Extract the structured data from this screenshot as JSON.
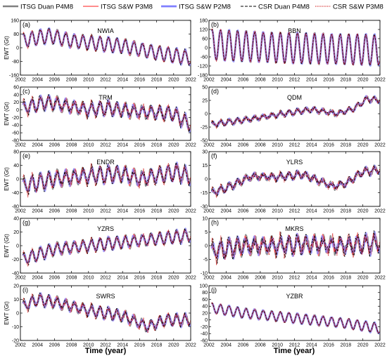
{
  "legend": {
    "items": [
      {
        "label": "ITSG Duan P4M8",
        "color": "#808080",
        "dash": "",
        "width": 2.4
      },
      {
        "label": "ITSG S&W P3M8",
        "color": "#ff6666",
        "dash": "",
        "width": 1.6
      },
      {
        "label": "ITSG  S&W P2M8",
        "color": "#7f7fff",
        "dash": "",
        "width": 2.8
      },
      {
        "label": "CSR Duan P4M8",
        "color": "#000000",
        "dash": "4,2",
        "width": 1.1
      },
      {
        "label": "CSR S&W P3M8",
        "color": "#cc0000",
        "dash": "1.2,1.2",
        "width": 1.1
      }
    ]
  },
  "x_title": "Time (year)",
  "chart_data": [
    {
      "type": "line",
      "panel": "(a)",
      "title": "NWIA",
      "ylabel": "EWT (Gt)",
      "ylim": [
        -160,
        160
      ],
      "yticks": [
        -160,
        -80,
        0,
        80,
        160
      ],
      "xlim": [
        2002,
        2022
      ],
      "xticks": [
        2002,
        2004,
        2006,
        2008,
        2010,
        2012,
        2014,
        2016,
        2018,
        2020,
        2022
      ],
      "trend": [
        [
          2002.3,
          40
        ],
        [
          2004.0,
          60
        ],
        [
          2005.5,
          70
        ],
        [
          2008.0,
          40
        ],
        [
          2012.0,
          20
        ],
        [
          2014.0,
          10
        ],
        [
          2016.0,
          -10
        ],
        [
          2018.0,
          -30
        ],
        [
          2020.0,
          -45
        ],
        [
          2022.0,
          -60
        ]
      ],
      "amplitude": 40,
      "noise": 8,
      "series": [
        {
          "name": "ITSG Duan P4M8"
        },
        {
          "name": "ITSG S&W P3M8"
        },
        {
          "name": "ITSG  S&W P2M8"
        },
        {
          "name": "CSR Duan P4M8"
        },
        {
          "name": "CSR S&W P3M8"
        }
      ]
    },
    {
      "type": "line",
      "panel": "(b)",
      "title": "BBN",
      "ylabel": "",
      "ylim": [
        -180,
        180
      ],
      "yticks": [
        -180,
        -120,
        -60,
        0,
        60,
        120,
        180
      ],
      "xlim": [
        2002,
        2022
      ],
      "xticks": [
        2002,
        2004,
        2006,
        2008,
        2010,
        2012,
        2014,
        2016,
        2018,
        2020,
        2022
      ],
      "trend": [
        [
          2002.3,
          20
        ],
        [
          2006.0,
          10
        ],
        [
          2010.0,
          0
        ],
        [
          2014.0,
          -5
        ],
        [
          2018.0,
          -10
        ],
        [
          2022.0,
          -15
        ]
      ],
      "amplitude": 100,
      "noise": 6,
      "series": [
        {
          "name": "ITSG Duan P4M8"
        },
        {
          "name": "ITSG S&W P3M8"
        },
        {
          "name": "ITSG  S&W P2M8"
        },
        {
          "name": "CSR Duan P4M8"
        },
        {
          "name": "CSR S&W P3M8"
        }
      ]
    },
    {
      "type": "line",
      "panel": "(c)",
      "title": "TRM",
      "ylabel": "EWT (Gt)",
      "ylim": [
        -80,
        60
      ],
      "yticks": [
        -80,
        -60,
        -40,
        -20,
        0,
        20,
        40,
        60
      ],
      "xlim": [
        2002,
        2022
      ],
      "xticks": [
        2002,
        2004,
        2006,
        2008,
        2010,
        2012,
        2014,
        2016,
        2018,
        2020,
        2022
      ],
      "trend": [
        [
          2002.3,
          5
        ],
        [
          2005.0,
          20
        ],
        [
          2006.5,
          15
        ],
        [
          2010.0,
          0
        ],
        [
          2012.0,
          5
        ],
        [
          2016.0,
          -5
        ],
        [
          2020.0,
          -10
        ],
        [
          2022.0,
          -40
        ]
      ],
      "amplitude": 15,
      "noise": 8,
      "series": [
        {
          "name": "ITSG Duan P4M8"
        },
        {
          "name": "ITSG S&W P3M8"
        },
        {
          "name": "ITSG  S&W P2M8"
        },
        {
          "name": "CSR Duan P4M8"
        },
        {
          "name": "CSR S&W P3M8"
        }
      ]
    },
    {
      "type": "line",
      "panel": "(d)",
      "title": "QDM",
      "ylabel": "",
      "ylim": [
        -50,
        50
      ],
      "yticks": [
        -50,
        -25,
        0,
        25,
        50
      ],
      "xlim": [
        2002,
        2022
      ],
      "xticks": [
        2002,
        2004,
        2006,
        2008,
        2010,
        2012,
        2014,
        2016,
        2018,
        2020,
        2022
      ],
      "trend": [
        [
          2002.3,
          -20
        ],
        [
          2006.0,
          -12
        ],
        [
          2010.0,
          -2
        ],
        [
          2014.0,
          8
        ],
        [
          2017.0,
          0
        ],
        [
          2019.0,
          10
        ],
        [
          2020.5,
          28
        ],
        [
          2022.0,
          25
        ]
      ],
      "amplitude": 4,
      "noise": 3,
      "series": [
        {
          "name": "ITSG Duan P4M8"
        },
        {
          "name": "ITSG S&W P3M8"
        },
        {
          "name": "ITSG  S&W P2M8"
        },
        {
          "name": "CSR Duan P4M8"
        },
        {
          "name": "CSR S&W P3M8"
        }
      ]
    },
    {
      "type": "line",
      "panel": "(e)",
      "title": "ENDR",
      "ylabel": "EWT (Gt)",
      "ylim": [
        -80,
        80
      ],
      "yticks": [
        -80,
        -40,
        0,
        40,
        80
      ],
      "xlim": [
        2002,
        2022
      ],
      "xticks": [
        2002,
        2004,
        2006,
        2008,
        2010,
        2012,
        2014,
        2016,
        2018,
        2020,
        2022
      ],
      "trend": [
        [
          2002.3,
          -20
        ],
        [
          2006.0,
          0
        ],
        [
          2010.0,
          10
        ],
        [
          2014.0,
          15
        ],
        [
          2016.0,
          0
        ],
        [
          2018.0,
          10
        ],
        [
          2020.5,
          20
        ],
        [
          2022.0,
          5
        ]
      ],
      "amplitude": 20,
      "noise": 10,
      "series": [
        {
          "name": "ITSG Duan P4M8"
        },
        {
          "name": "ITSG S&W P3M8"
        },
        {
          "name": "ITSG  S&W P2M8"
        },
        {
          "name": "CSR Duan P4M8"
        },
        {
          "name": "CSR S&W P3M8"
        }
      ]
    },
    {
      "type": "line",
      "panel": "(f)",
      "title": "YLRS",
      "ylabel": "",
      "ylim": [
        -30,
        30
      ],
      "yticks": [
        -30,
        -15,
        0,
        15,
        30
      ],
      "xlim": [
        2002,
        2022
      ],
      "xticks": [
        2002,
        2004,
        2006,
        2008,
        2010,
        2012,
        2014,
        2016,
        2018,
        2020,
        2022
      ],
      "trend": [
        [
          2002.3,
          -15
        ],
        [
          2004.0,
          -10
        ],
        [
          2007.0,
          3
        ],
        [
          2010.0,
          2
        ],
        [
          2013.0,
          5
        ],
        [
          2016.5,
          -8
        ],
        [
          2018.0,
          -5
        ],
        [
          2020.0,
          8
        ],
        [
          2022.0,
          10
        ]
      ],
      "amplitude": 3,
      "noise": 2.5,
      "series": [
        {
          "name": "ITSG Duan P4M8"
        },
        {
          "name": "ITSG S&W P3M8"
        },
        {
          "name": "ITSG  S&W P2M8"
        },
        {
          "name": "CSR Duan P4M8"
        },
        {
          "name": "CSR S&W P3M8"
        }
      ]
    },
    {
      "type": "line",
      "panel": "(g)",
      "title": "YZRS",
      "ylabel": "EWT (Gt)",
      "ylim": [
        -40,
        40
      ],
      "yticks": [
        -40,
        -20,
        0,
        20,
        40
      ],
      "xlim": [
        2002,
        2022
      ],
      "xticks": [
        2002,
        2004,
        2006,
        2008,
        2010,
        2012,
        2014,
        2016,
        2018,
        2020,
        2022
      ],
      "trend": [
        [
          2002.3,
          -20
        ],
        [
          2006.0,
          -5
        ],
        [
          2010.0,
          0
        ],
        [
          2014.0,
          5
        ],
        [
          2018.0,
          10
        ],
        [
          2022.0,
          15
        ]
      ],
      "amplitude": 8,
      "noise": 3,
      "series": [
        {
          "name": "ITSG Duan P4M8"
        },
        {
          "name": "ITSG S&W P3M8"
        },
        {
          "name": "ITSG  S&W P2M8"
        },
        {
          "name": "CSR Duan P4M8"
        },
        {
          "name": "CSR S&W P3M8"
        }
      ]
    },
    {
      "type": "line",
      "panel": "(h)",
      "title": "MKRS",
      "ylabel": "",
      "ylim": [
        -10,
        10
      ],
      "yticks": [
        -10,
        -5,
        0,
        5,
        10
      ],
      "xlim": [
        2002,
        2022
      ],
      "xticks": [
        2002,
        2004,
        2006,
        2008,
        2010,
        2012,
        2014,
        2016,
        2018,
        2020,
        2022
      ],
      "trend": [
        [
          2002.3,
          -2
        ],
        [
          2006.0,
          0
        ],
        [
          2010.0,
          0
        ],
        [
          2014.0,
          0.5
        ],
        [
          2018.0,
          0
        ],
        [
          2022.0,
          1
        ]
      ],
      "amplitude": 2.5,
      "noise": 1.8,
      "series": [
        {
          "name": "ITSG Duan P4M8"
        },
        {
          "name": "ITSG S&W P3M8"
        },
        {
          "name": "ITSG  S&W P2M8"
        },
        {
          "name": "CSR Duan P4M8"
        },
        {
          "name": "CSR S&W P3M8"
        }
      ]
    },
    {
      "type": "line",
      "panel": "(i)",
      "title": "SWRS",
      "ylabel": "EWT (Gt)",
      "ylim": [
        -20,
        20
      ],
      "yticks": [
        -20,
        -10,
        0,
        10,
        20
      ],
      "xlim": [
        2002,
        2022
      ],
      "xticks": [
        2002,
        2004,
        2006,
        2008,
        2010,
        2012,
        2014,
        2016,
        2018,
        2020,
        2022
      ],
      "trend": [
        [
          2002.3,
          5
        ],
        [
          2004.0,
          10
        ],
        [
          2006.0,
          8
        ],
        [
          2010.0,
          2
        ],
        [
          2014.0,
          -2
        ],
        [
          2017.0,
          -10
        ],
        [
          2019.0,
          -5
        ],
        [
          2022.0,
          -5
        ]
      ],
      "amplitude": 3.5,
      "noise": 1.8,
      "series": [
        {
          "name": "ITSG Duan P4M8"
        },
        {
          "name": "ITSG S&W P3M8"
        },
        {
          "name": "ITSG  S&W P2M8"
        },
        {
          "name": "CSR Duan P4M8"
        },
        {
          "name": "CSR S&W P3M8"
        }
      ]
    },
    {
      "type": "line",
      "panel": "(j)",
      "title": "YZBR",
      "ylabel": "",
      "ylim": [
        -60,
        100
      ],
      "yticks": [
        -60,
        -40,
        -20,
        0,
        20,
        40,
        60,
        80,
        100
      ],
      "xlim": [
        2002,
        2022
      ],
      "xticks": [
        2002,
        2004,
        2006,
        2008,
        2010,
        2012,
        2014,
        2016,
        2018,
        2020,
        2022
      ],
      "trend": [
        [
          2002.3,
          35
        ],
        [
          2006.0,
          20
        ],
        [
          2010.0,
          10
        ],
        [
          2014.0,
          0
        ],
        [
          2018.0,
          -10
        ],
        [
          2022.0,
          -25
        ]
      ],
      "amplitude": 14,
      "noise": 2,
      "series": [
        {
          "name": "ITSG Duan P4M8"
        },
        {
          "name": "ITSG S&W P3M8"
        },
        {
          "name": "ITSG  S&W P2M8"
        },
        {
          "name": "CSR Duan P4M8"
        },
        {
          "name": "CSR S&W P3M8"
        }
      ]
    }
  ]
}
